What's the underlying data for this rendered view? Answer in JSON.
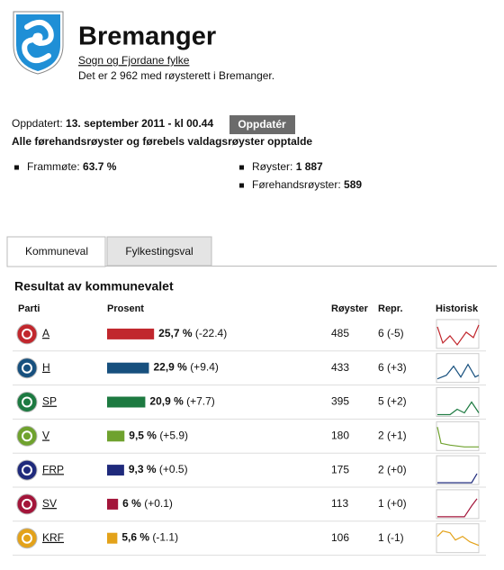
{
  "header": {
    "title": "Bremanger",
    "county": "Sogn og Fjordane fylke",
    "voters_text": "Det er 2 962 med røysterett i Bremanger."
  },
  "status": {
    "updated_label": "Oppdatert:",
    "updated_value": "13. september 2011 - kl 00.44",
    "button": "Oppdatér",
    "note": "Alle førehandsrøyster og førebels valdagsrøyster opptalde"
  },
  "stats": [
    {
      "label": "Frammøte:",
      "value": "63.7 %"
    },
    {
      "label": "Røyster:",
      "value": "1 887"
    },
    {
      "label": "Førehandsrøyster:",
      "value": "589"
    }
  ],
  "tabs": [
    "Kommuneval",
    "Fylkestingsval"
  ],
  "results": {
    "title": "Resultat av kommunevalet",
    "columns": [
      "Parti",
      "Prosent",
      "Røyster",
      "Repr.",
      "Historisk"
    ],
    "rows": [
      {
        "party": "A",
        "percent": 25.7,
        "percent_label": "25,7 %",
        "change": "(-22.4)",
        "votes": 485,
        "seats": "6 (-5)",
        "color": "#c1272d"
      },
      {
        "party": "H",
        "percent": 22.9,
        "percent_label": "22,9 %",
        "change": "(+9.4)",
        "votes": 433,
        "seats": "6 (+3)",
        "color": "#17507e"
      },
      {
        "party": "SP",
        "percent": 20.9,
        "percent_label": "20,9 %",
        "change": "(+7.7)",
        "votes": 395,
        "seats": "5 (+2)",
        "color": "#1d7a41"
      },
      {
        "party": "V",
        "percent": 9.5,
        "percent_label": "9,5 %",
        "change": "(+5.9)",
        "votes": 180,
        "seats": "2 (+1)",
        "color": "#6fa22e"
      },
      {
        "party": "FRP",
        "percent": 9.3,
        "percent_label": "9,3 %",
        "change": "(+0.5)",
        "votes": 175,
        "seats": "2 (+0)",
        "color": "#1f2a7c"
      },
      {
        "party": "SV",
        "percent": 6,
        "percent_label": "6 %",
        "change": "(+0.1)",
        "votes": 113,
        "seats": "1 (+0)",
        "color": "#a3153a"
      },
      {
        "party": "KRF",
        "percent": 5.6,
        "percent_label": "5,6 %",
        "change": "(-1.1)",
        "votes": 106,
        "seats": "1 (-1)",
        "color": "#e3a21a"
      }
    ]
  }
}
